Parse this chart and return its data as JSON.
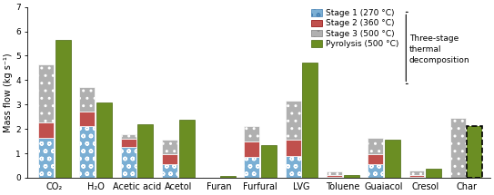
{
  "categories": [
    "CO₂",
    "H₂O",
    "Acetic acid",
    "Acetol",
    "Furan",
    "Furfural",
    "LVG",
    "Toluene",
    "Guaiacol",
    "Cresol",
    "Char"
  ],
  "stage1": [
    1.65,
    2.1,
    1.25,
    0.55,
    0.03,
    0.85,
    0.9,
    0.05,
    0.55,
    0.05,
    0.0
  ],
  "stage2": [
    0.6,
    0.6,
    0.35,
    0.4,
    0.02,
    0.65,
    0.65,
    0.07,
    0.4,
    0.05,
    0.0
  ],
  "stage3": [
    2.4,
    1.0,
    0.2,
    0.6,
    0.0,
    0.6,
    1.6,
    0.15,
    0.7,
    0.2,
    2.45
  ],
  "pyrolysis": [
    5.65,
    3.07,
    2.18,
    2.38,
    0.07,
    1.32,
    4.73,
    0.1,
    1.55,
    0.36,
    2.1
  ],
  "stage1_color": "#7bafd4",
  "stage2_color": "#c0504d",
  "stage3_color": "#b0b0b0",
  "pyrolysis_color": "#6b8e23",
  "pyrolysis_edge_color": "#4a6a10",
  "ylim": [
    0,
    7.0
  ],
  "yticks": [
    0.0,
    1.0,
    2.0,
    3.0,
    4.0,
    5.0,
    6.0,
    7.0
  ],
  "ylabel": "Mass flow (kg s⁻¹)",
  "legend_labels": [
    "Stage 1 (270 °C)",
    "Stage 2 (360 °C)",
    "Stage 3 (500 °C)",
    "Pyrolysis (500 °C)"
  ],
  "annotation": "Three-stage\nthermal\ndecomposition",
  "label_fontsize": 7.0,
  "tick_fontsize": 6.5,
  "legend_fontsize": 6.5
}
